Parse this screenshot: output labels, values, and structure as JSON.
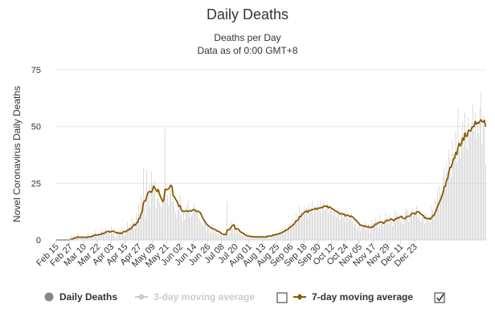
{
  "chart_data": {
    "type": "bar",
    "title": "Daily Deaths",
    "subtitle_lines": [
      "Deaths per Day",
      "Data as of 0:00 GMT+8"
    ],
    "ylabel": "Novel Coronavirus Daily Deaths",
    "xlabel": "",
    "ylim": [
      0,
      75
    ],
    "yticks": [
      0,
      25,
      50,
      75
    ],
    "grid": true,
    "legend_position": "bottom",
    "colors": {
      "bars": "#c8c8c8",
      "avg7": "#8b5a00",
      "avg3": "#cccccc",
      "text": "#333333",
      "grid": "#e6e6e6"
    },
    "x_tick_labels": [
      "Feb 15",
      "Feb 27",
      "Mar 10",
      "Mar 22",
      "Apr 03",
      "Apr 15",
      "Apr 27",
      "May 09",
      "May 21",
      "Jun 02",
      "Jun 14",
      "Jun 26",
      "Jul 08",
      "Jul 20",
      "Aug 01",
      "Aug 13",
      "Aug 25",
      "Sep 06",
      "Sep 18",
      "Sep 30",
      "Oct 12",
      "Oct 24",
      "Nov 05",
      "Nov 17",
      "Nov 29",
      "Dec 11",
      "Dec 23"
    ],
    "x_tick_step_days": 12,
    "series": [
      {
        "name": "Daily Deaths",
        "type": "bar",
        "values": [
          0,
          0,
          0,
          0,
          0,
          0,
          0,
          0,
          0,
          0,
          0,
          0,
          0,
          2,
          1,
          1,
          2,
          0,
          1,
          3,
          0,
          1,
          2,
          1,
          1,
          0,
          2,
          1,
          3,
          1,
          2,
          1,
          3,
          2,
          4,
          2,
          1,
          3,
          2,
          3,
          5,
          4,
          2,
          5,
          4,
          3,
          4,
          2,
          6,
          3,
          5,
          2,
          1,
          2,
          4,
          3,
          5,
          2,
          6,
          4,
          2,
          3,
          8,
          5,
          7,
          4,
          10,
          6,
          8,
          5,
          12,
          9,
          16,
          11,
          20,
          14,
          32,
          18,
          10,
          31,
          20,
          24,
          14,
          30,
          25,
          22,
          26,
          14,
          18,
          21,
          17,
          15,
          14,
          19,
          22,
          49,
          18,
          20,
          15,
          21,
          24,
          17,
          22,
          15,
          12,
          10,
          13,
          14,
          20,
          11,
          8,
          13,
          9,
          14,
          15,
          18,
          12,
          10,
          11,
          12,
          16,
          13,
          14,
          12,
          10,
          9,
          8,
          7,
          6,
          8,
          7,
          4,
          6,
          5,
          4,
          3,
          7,
          5,
          3,
          4,
          2,
          3,
          2,
          4,
          2,
          1,
          3,
          2,
          2,
          17,
          4,
          3,
          6,
          8,
          5,
          4,
          3,
          5,
          4,
          3,
          3,
          2,
          2,
          2,
          1,
          2,
          2,
          1,
          2,
          1,
          1,
          2,
          1,
          1,
          2,
          1,
          1,
          2,
          1,
          1,
          2,
          1,
          1,
          2,
          2,
          3,
          1,
          2,
          2,
          3,
          2,
          3,
          4,
          2,
          3,
          4,
          3,
          5,
          4,
          6,
          5,
          4,
          6,
          7,
          8,
          6,
          10,
          7,
          9,
          12,
          8,
          11,
          15,
          10,
          13,
          12,
          15,
          11,
          14,
          10,
          16,
          12,
          14,
          17,
          11,
          15,
          13,
          12,
          16,
          14,
          18,
          12,
          15,
          17,
          13,
          14,
          16,
          12,
          15,
          13,
          14,
          11,
          13,
          12,
          10,
          14,
          11,
          9,
          12,
          13,
          10,
          11,
          8,
          13,
          10,
          9,
          11,
          12,
          8,
          6,
          7,
          9,
          5,
          6,
          8,
          4,
          7,
          5,
          6,
          8,
          4,
          5,
          7,
          3,
          5,
          9,
          7,
          8,
          10,
          6,
          8,
          5,
          11,
          7,
          8,
          6,
          9,
          12,
          8,
          10,
          7,
          11,
          8,
          6,
          9,
          13,
          10,
          12,
          9,
          11,
          8,
          10,
          7,
          9,
          12,
          14,
          13,
          8,
          10,
          12,
          14,
          11,
          13,
          12,
          15,
          10,
          12,
          9,
          8,
          11,
          10,
          7,
          12,
          9,
          8,
          10,
          8,
          15,
          13,
          12,
          18,
          14,
          22,
          16,
          24,
          20,
          22,
          28,
          32,
          24,
          34,
          30,
          40,
          36,
          28,
          44,
          38,
          36,
          48,
          34,
          58,
          40,
          36,
          46,
          52,
          42,
          56,
          48,
          40,
          54,
          46,
          50,
          52,
          60,
          48,
          56,
          45,
          52,
          47,
          58,
          65,
          42,
          55,
          50,
          33
        ]
      },
      {
        "name": "3-day moving average",
        "type": "line",
        "visible": false
      },
      {
        "name": "7-day moving average",
        "type": "line",
        "visible": true
      }
    ]
  },
  "legend": {
    "daily": "Daily Deaths",
    "avg3": "3-day moving average",
    "avg7": "7-day moving average"
  }
}
